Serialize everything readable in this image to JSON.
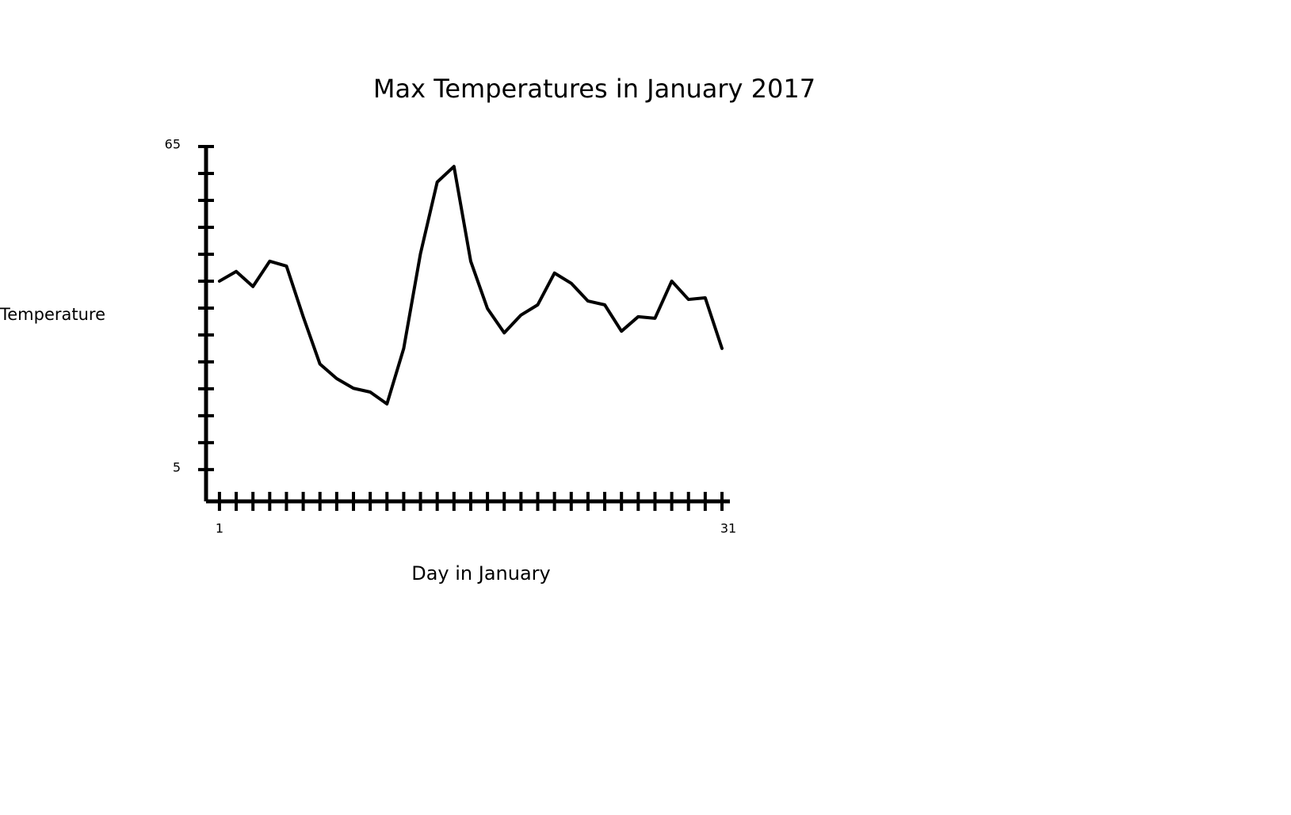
{
  "chart_data": {
    "type": "line",
    "title": "Max Temperatures in January 2017",
    "x_label": "Day in January",
    "y_label": "Temperature",
    "x": [
      1,
      2,
      3,
      4,
      5,
      6,
      7,
      8,
      9,
      10,
      11,
      12,
      13,
      14,
      15,
      16,
      17,
      18,
      19,
      20,
      21,
      22,
      23,
      24,
      25,
      26,
      27,
      28,
      29,
      30,
      31
    ],
    "series": [
      {
        "color": "#000000",
        "values": [
          40,
          41.8,
          39,
          43.7,
          42.8,
          33.4,
          24.6,
          21.9,
          20.1,
          19.4,
          17.2,
          27.5,
          45.1,
          58.4,
          61.3,
          43.7,
          34.9,
          30.4,
          33.7,
          35.6,
          41.5,
          39.6,
          36.3,
          35.6,
          30.7,
          33.4,
          33.1,
          40,
          36.6,
          36.9,
          27.5
        ]
      }
    ],
    "xlim": [
      0.2,
      31
    ],
    "xticks": [
      1,
      31
    ],
    "ylim": [
      -0.9,
      65
    ],
    "yticks": [
      5,
      65
    ]
  }
}
